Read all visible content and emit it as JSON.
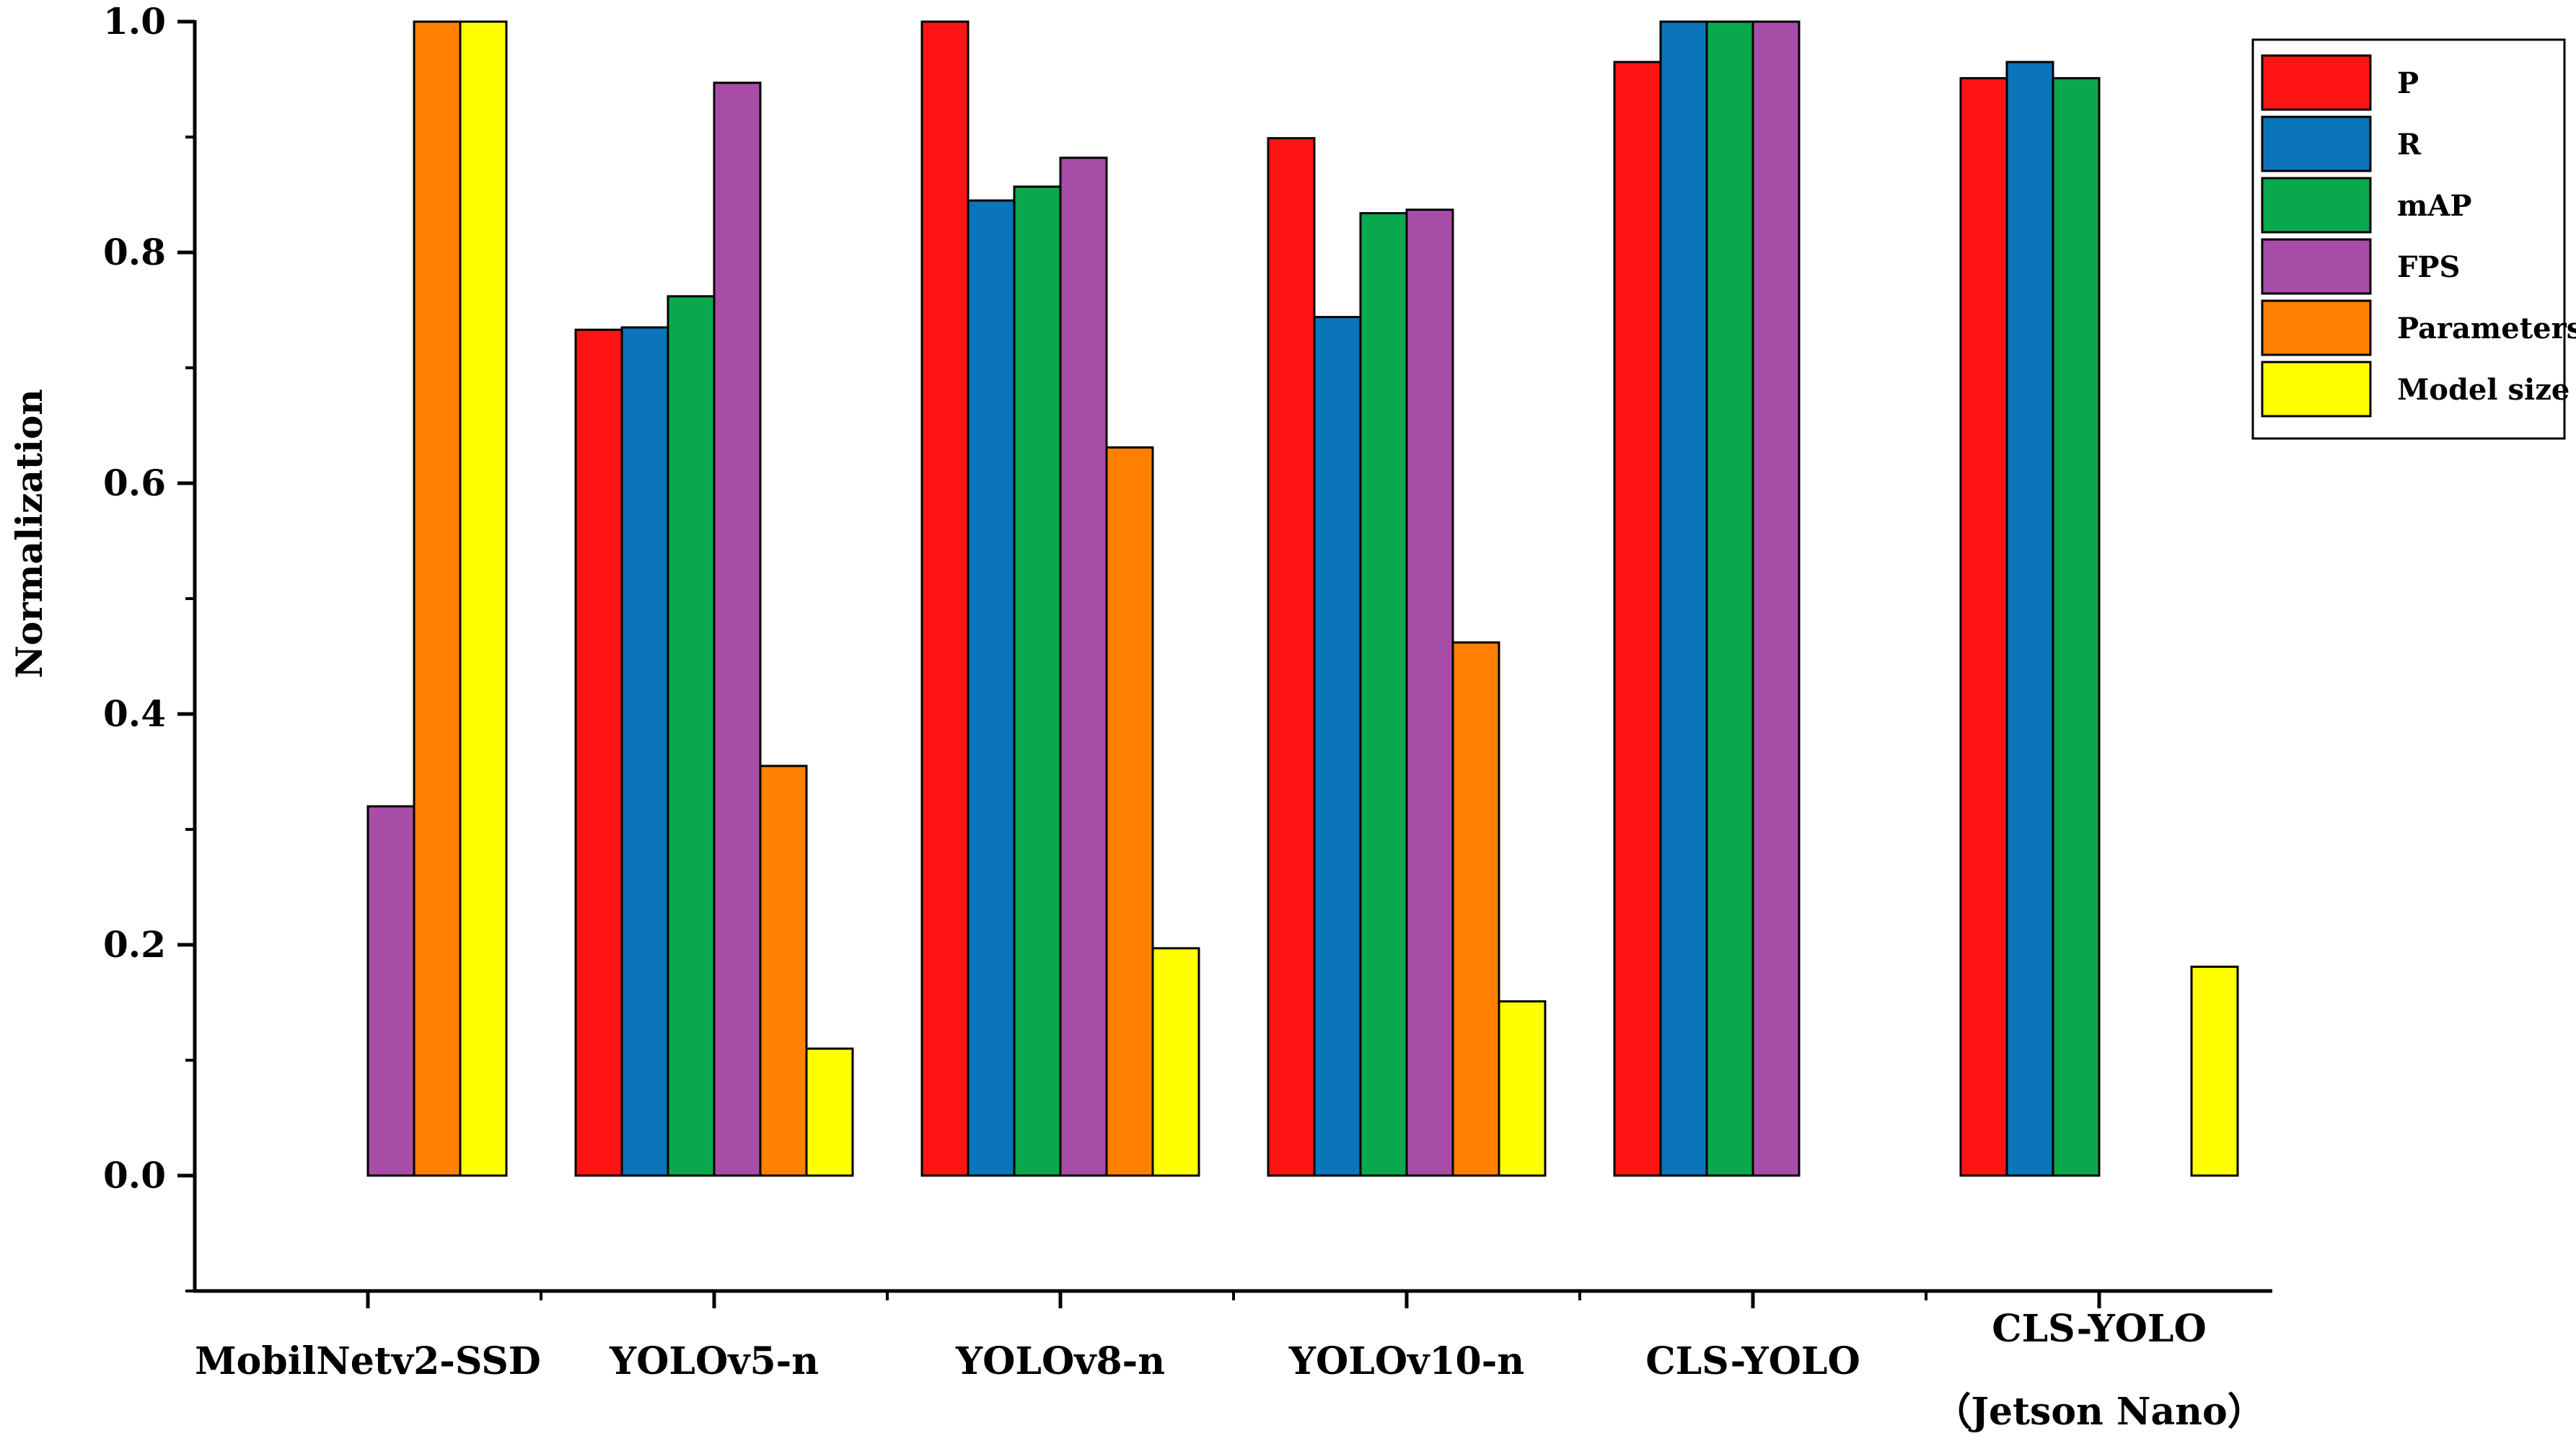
{
  "chart_data": {
    "type": "bar",
    "title": "",
    "xlabel": "",
    "ylabel": "Normalization",
    "ylim": [
      -0.1,
      1.0
    ],
    "yticks": [
      "0.0",
      "0.2",
      "0.4",
      "0.6",
      "0.8",
      "1.0"
    ],
    "grid": false,
    "legend_position": "top-right",
    "categories": [
      "MobilNetv2-SSD",
      "YOLOv5-n",
      "YOLOv8-n",
      "YOLOv10-n",
      "CLS-YOLO",
      "CLS-YOLO\n（Jetson Nano）"
    ],
    "category_lines": [
      [
        "MobilNetv2-SSD"
      ],
      [
        "YOLOv5-n"
      ],
      [
        "YOLOv8-n"
      ],
      [
        "YOLOv10-n"
      ],
      [
        "CLS-YOLO"
      ],
      [
        "CLS-YOLO",
        "（Jetson Nano）"
      ]
    ],
    "series": [
      {
        "name": "P",
        "color": "#ff1414",
        "values": [
          0.0,
          0.733,
          1.0,
          0.899,
          0.965,
          0.951
        ]
      },
      {
        "name": "R",
        "color": "#0a75b8",
        "values": [
          0.0,
          0.735,
          0.845,
          0.744,
          1.0,
          0.965
        ]
      },
      {
        "name": "mAP",
        "color": "#0aa84c",
        "values": [
          0.0,
          0.762,
          0.857,
          0.834,
          1.0,
          0.951
        ]
      },
      {
        "name": "FPS",
        "color": "#a84da7",
        "values": [
          0.32,
          0.947,
          0.882,
          0.837,
          1.0,
          0.0
        ]
      },
      {
        "name": "Parameters",
        "color": "#ff7f00",
        "values": [
          1.0,
          0.355,
          0.631,
          0.462,
          0.0,
          0.0
        ]
      },
      {
        "name": "Model size",
        "color": "#ffff00",
        "values": [
          1.0,
          0.11,
          0.197,
          0.151,
          0.0,
          0.181
        ]
      }
    ]
  }
}
